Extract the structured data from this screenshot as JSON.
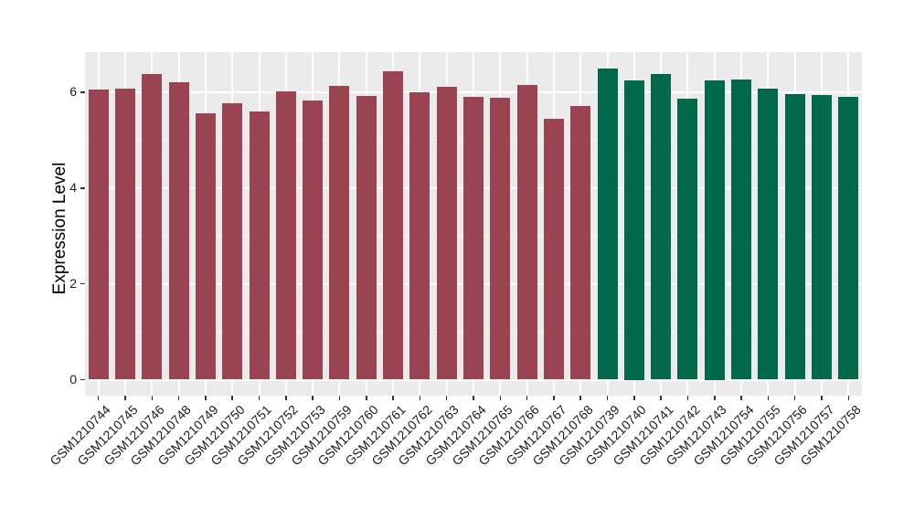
{
  "chart_data": {
    "type": "bar",
    "title": "",
    "ylabel": "Expression Level",
    "xlabel": "",
    "yticks": [
      0,
      2,
      4,
      6
    ],
    "minor_yticks": [
      1,
      3,
      5
    ],
    "ylim": [
      -0.33,
      6.84
    ],
    "grid": "white major + minor horizontal lines, white vertical lines at category centers, on gray panel",
    "legend_position": "none",
    "colors": {
      "panel_bg": "#EBEBEB",
      "gridline": "#FFFFFF",
      "tick": "#333333",
      "text": "#1A1A1A",
      "maroon_group": "#9A4452",
      "green_group": "#00684B"
    },
    "groups": [
      {
        "name": "maroon-samples",
        "color": "#9A4452",
        "bars": [
          {
            "label": "GSM1210744",
            "value": 6.07
          },
          {
            "label": "GSM1210745",
            "value": 6.09
          },
          {
            "label": "GSM1210746",
            "value": 6.39
          },
          {
            "label": "GSM1210748",
            "value": 6.21
          },
          {
            "label": "GSM1210749",
            "value": 5.56
          },
          {
            "label": "GSM1210750",
            "value": 5.78
          },
          {
            "label": "GSM1210751",
            "value": 5.61
          },
          {
            "label": "GSM1210752",
            "value": 6.03
          },
          {
            "label": "GSM1210753",
            "value": 5.84
          },
          {
            "label": "GSM1210759",
            "value": 6.13
          },
          {
            "label": "GSM1210760",
            "value": 5.93
          },
          {
            "label": "GSM1210761",
            "value": 6.44
          },
          {
            "label": "GSM1210762",
            "value": 6.01
          },
          {
            "label": "GSM1210763",
            "value": 6.12
          },
          {
            "label": "GSM1210764",
            "value": 5.9
          },
          {
            "label": "GSM1210765",
            "value": 5.89
          },
          {
            "label": "GSM1210766",
            "value": 6.15
          },
          {
            "label": "GSM1210767",
            "value": 5.45
          },
          {
            "label": "GSM1210768",
            "value": 5.72
          }
        ]
      },
      {
        "name": "green-samples",
        "color": "#00684B",
        "bars": [
          {
            "label": "GSM1210739",
            "value": 6.51
          },
          {
            "label": "GSM1210740",
            "value": 6.25
          },
          {
            "label": "GSM1210741",
            "value": 6.38
          },
          {
            "label": "GSM1210742",
            "value": 5.88
          },
          {
            "label": "GSM1210743",
            "value": 6.25
          },
          {
            "label": "GSM1210754",
            "value": 6.27
          },
          {
            "label": "GSM1210755",
            "value": 6.08
          },
          {
            "label": "GSM1210756",
            "value": 5.97
          },
          {
            "label": "GSM1210757",
            "value": 5.94
          },
          {
            "label": "GSM1210758",
            "value": 5.9
          }
        ]
      }
    ]
  }
}
